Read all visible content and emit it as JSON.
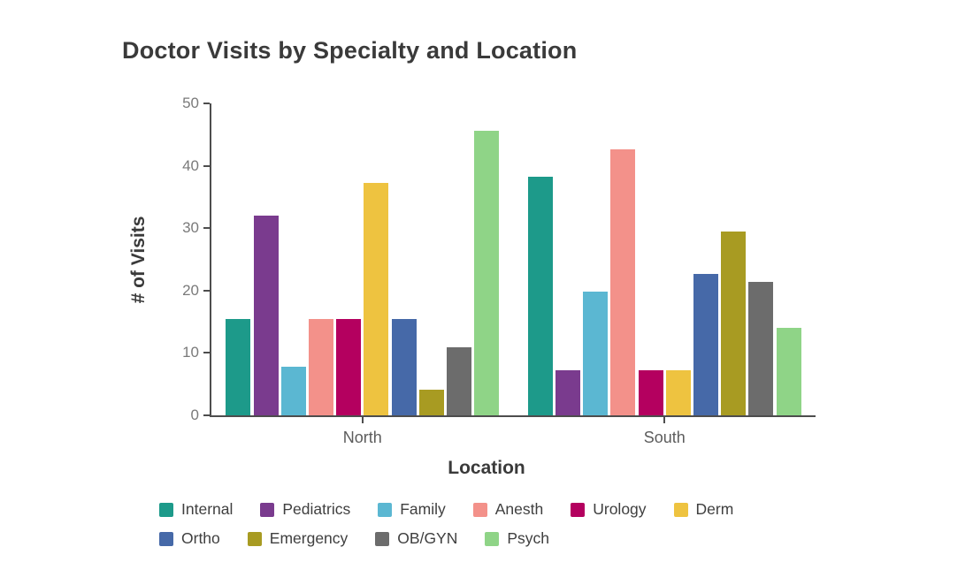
{
  "title": "Doctor Visits by Specialty and Location",
  "chart_data": {
    "type": "bar",
    "title": "Doctor Visits by Specialty and Location",
    "xlabel": "Location",
    "ylabel": "# of Visits",
    "categories": [
      "North",
      "South"
    ],
    "y_ticks": [
      0,
      10,
      20,
      30,
      40,
      50
    ],
    "ylim": [
      0,
      50
    ],
    "grid": false,
    "legend_position": "bottom",
    "axis_color": "#4d4d4d",
    "series": [
      {
        "name": "Internal",
        "color": "#1d9a8a",
        "values": [
          15.5,
          38.3
        ]
      },
      {
        "name": "Pediatrics",
        "color": "#7a3b8e",
        "values": [
          32.0,
          7.2
        ]
      },
      {
        "name": "Family",
        "color": "#5bb7d2",
        "values": [
          7.8,
          19.8
        ]
      },
      {
        "name": "Anesth",
        "color": "#f3918a",
        "values": [
          15.5,
          42.7
        ]
      },
      {
        "name": "Urology",
        "color": "#b4005f",
        "values": [
          15.5,
          7.2
        ]
      },
      {
        "name": "Derm",
        "color": "#eec340",
        "values": [
          37.3,
          7.2
        ]
      },
      {
        "name": "Ortho",
        "color": "#4669a8",
        "values": [
          15.5,
          22.6
        ]
      },
      {
        "name": "Emergency",
        "color": "#a89b22",
        "values": [
          4.1,
          29.4
        ]
      },
      {
        "name": "OB/GYN",
        "color": "#6c6c6c",
        "values": [
          10.9,
          21.4
        ]
      },
      {
        "name": "Psych",
        "color": "#8fd487",
        "values": [
          45.6,
          14.0
        ]
      }
    ],
    "legend_rows": [
      [
        "Internal",
        "Pediatrics",
        "Family",
        "Anesth",
        "Urology",
        "Derm"
      ],
      [
        "Ortho",
        "Emergency",
        "OB/GYN",
        "Psych"
      ]
    ]
  }
}
